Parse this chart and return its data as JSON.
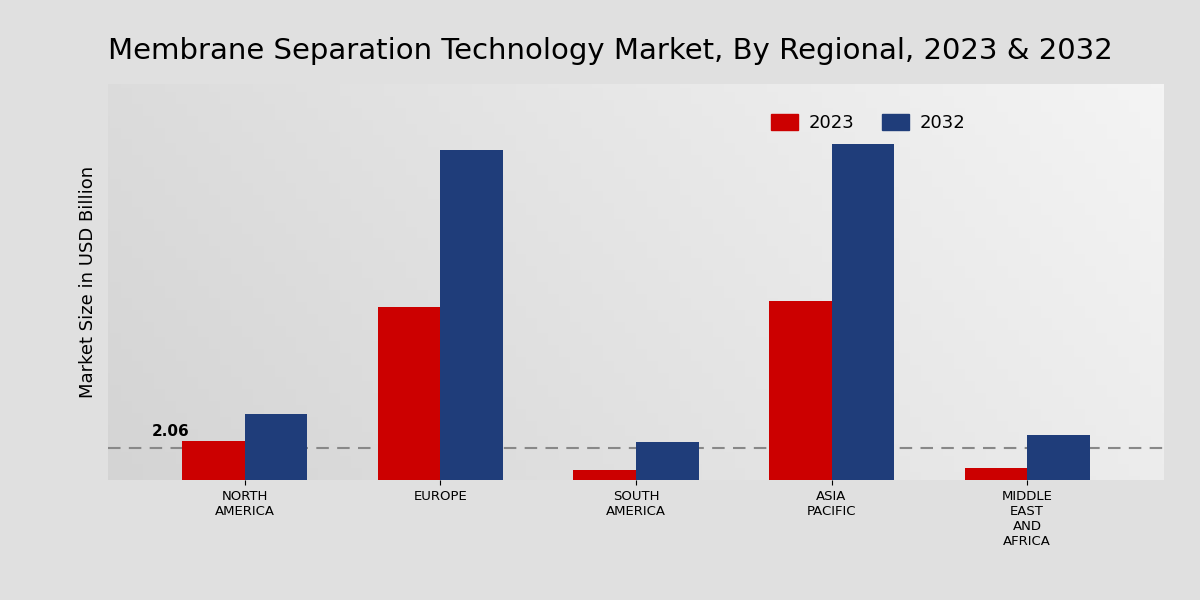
{
  "title": "Membrane Separation Technology Market, By Regional, 2023 & 2032",
  "ylabel": "Market Size in USD Billion",
  "categories": [
    "NORTH\nAMERICA",
    "EUROPE",
    "SOUTH\nAMERICA",
    "ASIA\nPACIFIC",
    "MIDDLE\nEAST\nAND\nAFRICA"
  ],
  "values_2023": [
    2.06,
    9.2,
    0.55,
    9.5,
    0.65
  ],
  "values_2032": [
    3.5,
    17.5,
    2.0,
    17.8,
    2.4
  ],
  "color_2023": "#cc0000",
  "color_2032": "#1f3d7a",
  "annotation_text": "2.06",
  "annotation_index": 0,
  "bar_width": 0.32,
  "dashed_line_y": 1.7,
  "legend_labels": [
    "2023",
    "2032"
  ],
  "title_fontsize": 21,
  "ylabel_fontsize": 13,
  "tick_fontsize": 9.5,
  "legend_fontsize": 13,
  "ylim_max": 21
}
